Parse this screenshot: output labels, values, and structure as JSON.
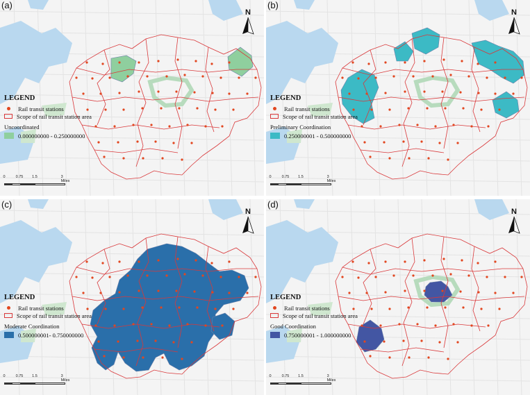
{
  "panels": [
    {
      "label": "(a)",
      "class_title": "Uncoordinated",
      "class_range": "0.000000000 - 0.250000000",
      "class_color": "#8fcf9e"
    },
    {
      "label": "(b)",
      "class_title": "Preliminary  Coordination",
      "class_range": "0.250000001 - 0.500000000",
      "class_color": "#3cbac5"
    },
    {
      "label": "(c)",
      "class_title": "Moderate Coordination",
      "class_range": "0.500000001- 0.750000000",
      "class_color": "#2a6faa"
    },
    {
      "label": "(d)",
      "class_title": "Good Coordination",
      "class_range": "0.750000001 - 1.000000000",
      "class_color": "#4356a3"
    }
  ],
  "legend": {
    "title": "LEGEND",
    "stations_label": "Rail transit stations",
    "scope_label": "Scope of rail transit station area"
  },
  "scale": {
    "ticks": [
      "0",
      "0.75",
      "1.5",
      "3 Miles"
    ]
  },
  "north_label": "N",
  "colors": {
    "station": "#e2461f",
    "boundary": "#d9383a",
    "water": "#b9d8ef",
    "green": "#cfe7cf",
    "background": "#f4f4f4"
  }
}
